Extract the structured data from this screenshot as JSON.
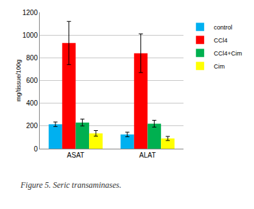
{
  "chart_data": {
    "type": "bar",
    "caption": "Figure 5. Seric transaminases.",
    "y_label": "mg/tissue/100g",
    "categories": [
      "ASAT",
      "ALAT"
    ],
    "series": [
      {
        "name": "control",
        "color": "#00b0f0",
        "values": [
          215,
          125
        ],
        "errors": [
          20,
          20
        ]
      },
      {
        "name": "CCl4",
        "color": "#ff0000",
        "values": [
          930,
          840
        ],
        "errors": [
          190,
          170
        ]
      },
      {
        "name": "CCl4+Cim",
        "color": "#00b050",
        "values": [
          230,
          220
        ],
        "errors": [
          30,
          30
        ]
      },
      {
        "name": "Cim",
        "color": "#ffff00",
        "values": [
          135,
          90
        ],
        "errors": [
          25,
          18
        ]
      }
    ],
    "ylim": [
      0,
      1200
    ],
    "yticks": [
      0,
      200,
      400,
      600,
      800,
      1000,
      1200
    ],
    "grid": true,
    "legend": "right"
  }
}
